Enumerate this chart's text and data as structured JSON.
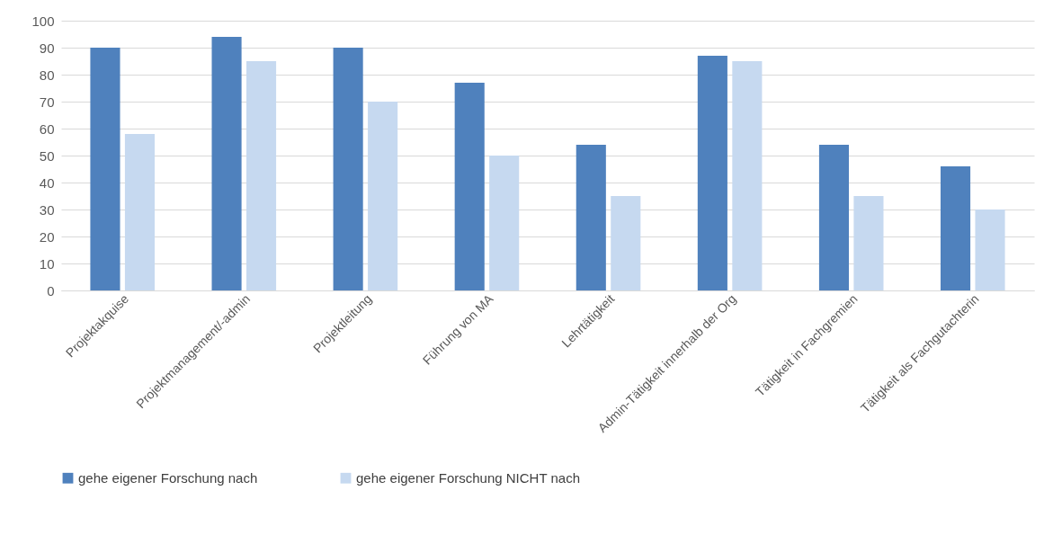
{
  "chart_data": {
    "type": "bar",
    "categories": [
      "Projektakquise",
      "Projektmanagement/-admin",
      "Projektleitung",
      "Führung von MA",
      "Lehrtätigkeit",
      "Admin-Tätigkeit innerhalb der Org",
      "Tätigkeit in Fachgremien",
      "Tätigkeit als Fachgutachterin"
    ],
    "series": [
      {
        "name": "gehe eigener Forschung nach",
        "color": "#4f81bd",
        "values": [
          90,
          94,
          90,
          77,
          54,
          87,
          54,
          46
        ]
      },
      {
        "name": "gehe eigener Forschung NICHT nach",
        "color": "#c6d9f0",
        "values": [
          58,
          85,
          70,
          50,
          35,
          85,
          35,
          30
        ]
      }
    ],
    "ylim": [
      0,
      100
    ],
    "yticks": [
      0,
      10,
      20,
      30,
      40,
      50,
      60,
      70,
      80,
      90,
      100
    ],
    "grid": "y",
    "legend": "bottom"
  }
}
